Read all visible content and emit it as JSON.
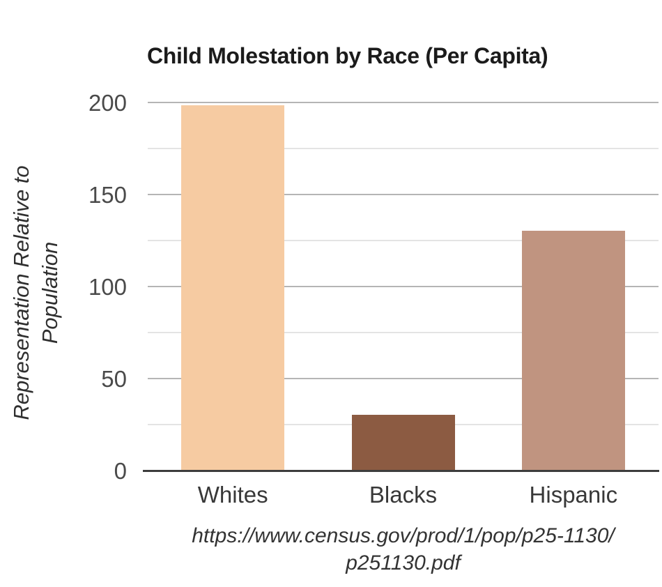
{
  "chart_data": {
    "type": "bar",
    "title": "Child Molestation by Race (Per Capita)",
    "ylabel": "Representation Relative to Population",
    "ylabel_lines": [
      "Representation Relative to",
      "Population"
    ],
    "categories": [
      "Whites",
      "Blacks",
      "Hispanic"
    ],
    "values": [
      198,
      30,
      130
    ],
    "bar_colors": [
      "#f6cba2",
      "#8c5b42",
      "#c09480"
    ],
    "ylim": [
      0,
      200
    ],
    "yticks": [
      0,
      50,
      100,
      150,
      200
    ],
    "minor_gridlines": [
      25,
      75,
      125,
      175
    ],
    "grid": "horizontal",
    "legend_position": "none",
    "source_lines": [
      "https://www.census.gov/prod/1/pop/p25-1130/",
      "p251130.pdf"
    ]
  },
  "colors": {
    "background": "#ffffff",
    "title_text": "#1b1b1b",
    "tick_label": "#4a4a4a",
    "category_label": "#383838",
    "axis_label": "#2f2f2f",
    "source_text": "#333333",
    "major_grid": "#b5b5b5",
    "minor_grid": "#e4e4e4",
    "baseline": "#3d3d3d"
  }
}
